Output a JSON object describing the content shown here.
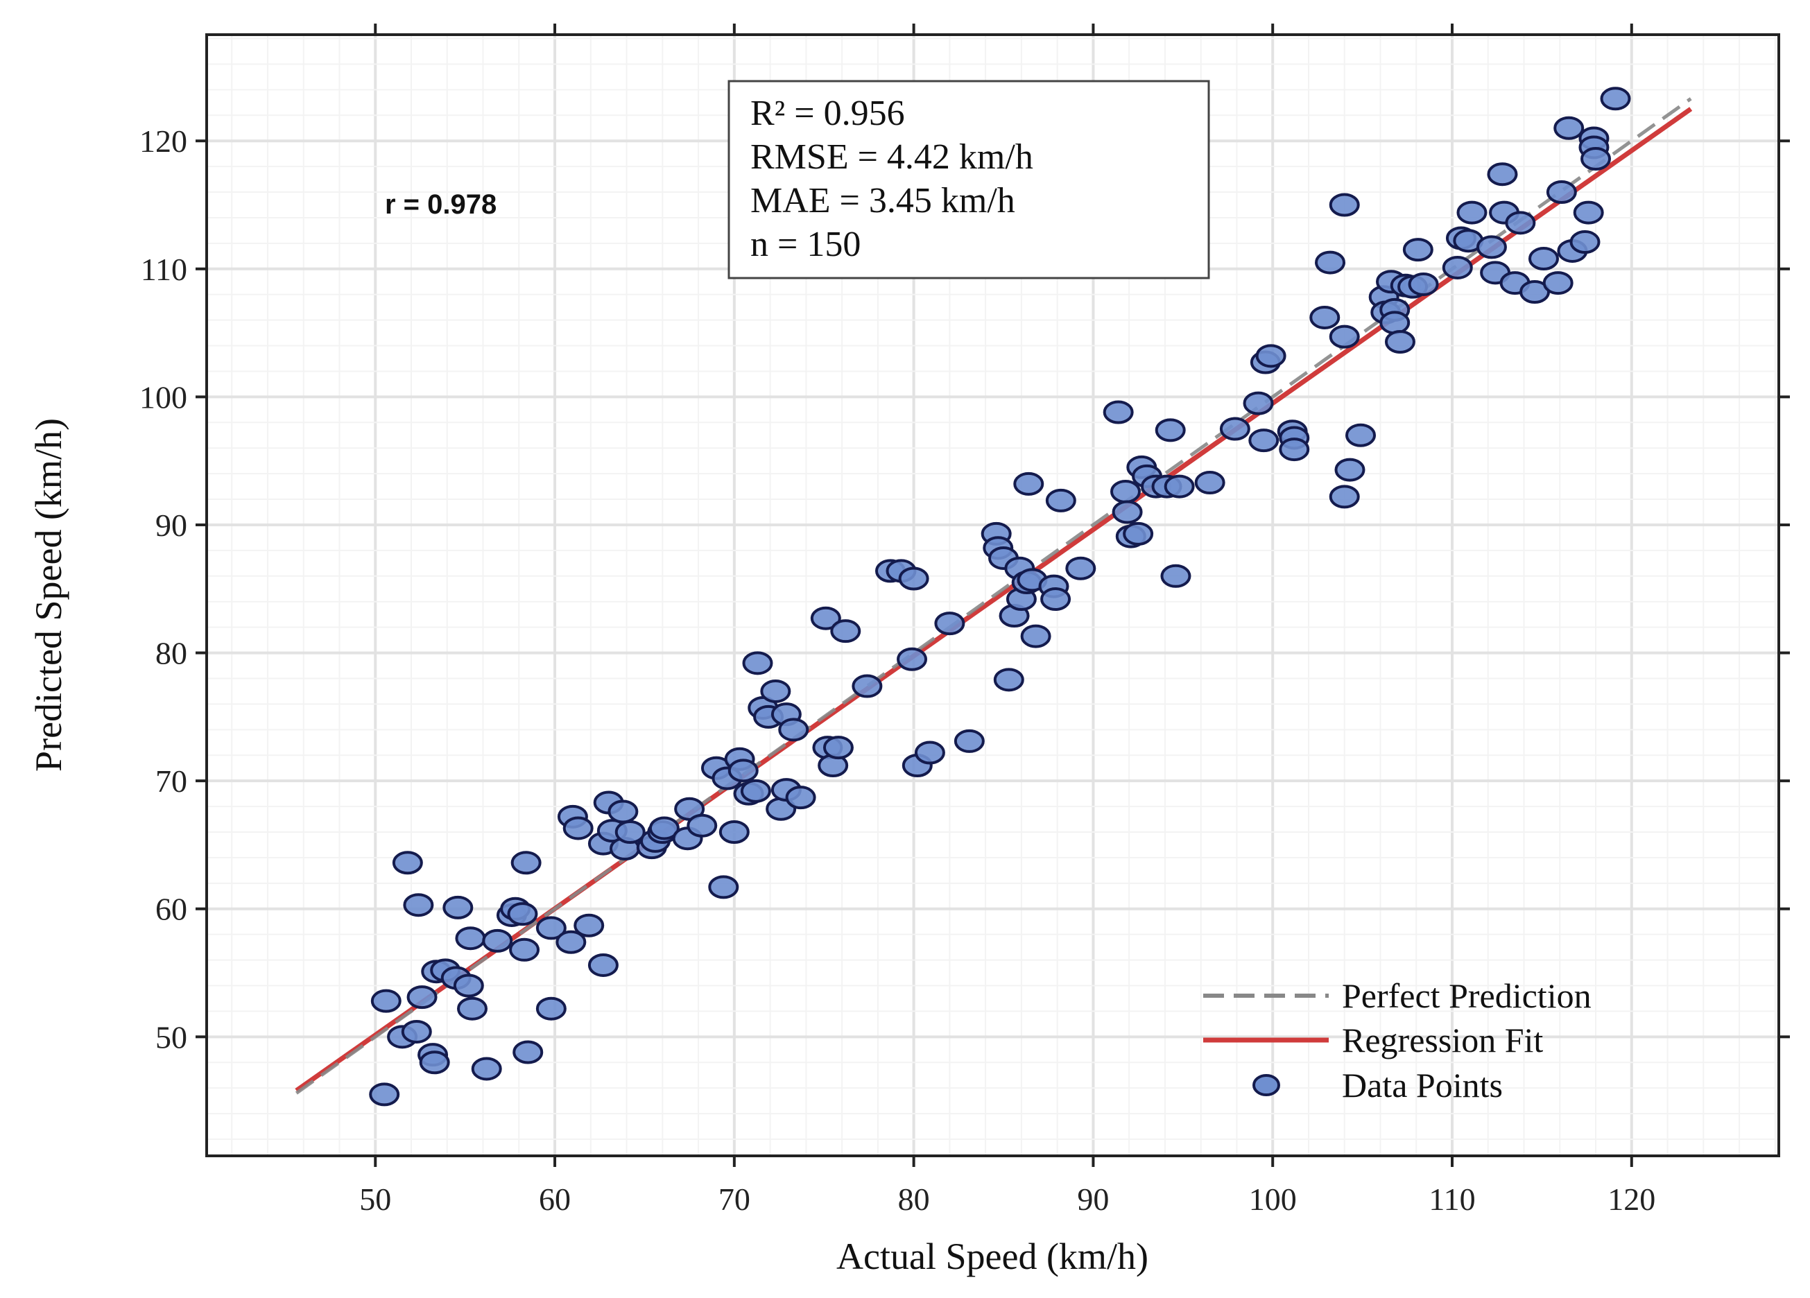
{
  "chart_data": {
    "type": "scatter",
    "xlabel": "Actual Speed (km/h)",
    "ylabel": "Predicted Speed (km/h)",
    "xlim": [
      40.6,
      128.2
    ],
    "ylim": [
      40.7,
      128.3
    ],
    "xticks": [
      50,
      60,
      70,
      80,
      90,
      100,
      110,
      120
    ],
    "yticks": [
      50,
      60,
      70,
      80,
      90,
      100,
      110,
      120
    ],
    "grid": true,
    "legend_position": "bottom-right",
    "annotation_r": "r = 0.978",
    "stats": [
      "R² = 0.956",
      "RMSE = 4.42 km/h",
      "MAE = 3.45 km/h",
      "n = 150"
    ],
    "colors": {
      "points_fill": "#6f8fd0",
      "points_edge": "#141b4d",
      "regression": "#d03b3b",
      "perfect": "#888888"
    },
    "series": [
      {
        "name": "Perfect Prediction",
        "kind": "line",
        "style": "dashed",
        "x": [
          45.6,
          123.3
        ],
        "y": [
          45.6,
          123.3
        ]
      },
      {
        "name": "Regression Fit",
        "kind": "line",
        "style": "solid",
        "x": [
          45.6,
          123.3
        ],
        "y": [
          45.8,
          122.5
        ]
      },
      {
        "name": "Data Points",
        "kind": "scatter",
        "points": [
          [
            50.5,
            45.5
          ],
          [
            50.6,
            52.8
          ],
          [
            51.5,
            50
          ],
          [
            51.8,
            63.6
          ],
          [
            52.3,
            50.4
          ],
          [
            52.4,
            60.3
          ],
          [
            52.6,
            53.1
          ],
          [
            53.2,
            48.6
          ],
          [
            53.3,
            48
          ],
          [
            53.4,
            55.1
          ],
          [
            53.9,
            55.2
          ],
          [
            54.5,
            54.6
          ],
          [
            54.6,
            60.1
          ],
          [
            55.2,
            54
          ],
          [
            55.3,
            57.7
          ],
          [
            55.4,
            52.2
          ],
          [
            56.2,
            47.5
          ],
          [
            56.8,
            57.5
          ],
          [
            57.6,
            59.5
          ],
          [
            57.8,
            60
          ],
          [
            58.2,
            59.6
          ],
          [
            58.3,
            56.8
          ],
          [
            58.4,
            63.6
          ],
          [
            58.5,
            48.8
          ],
          [
            59.8,
            58.5
          ],
          [
            59.8,
            52.2
          ],
          [
            60.9,
            57.4
          ],
          [
            61,
            67.2
          ],
          [
            61.3,
            66.3
          ],
          [
            61.9,
            58.7
          ],
          [
            62.7,
            55.6
          ],
          [
            62.7,
            65.1
          ],
          [
            63,
            68.3
          ],
          [
            63.2,
            66.1
          ],
          [
            63.8,
            67.6
          ],
          [
            63.9,
            64.7
          ],
          [
            64.2,
            66
          ],
          [
            65.4,
            64.8
          ],
          [
            65.6,
            65.3
          ],
          [
            66,
            66
          ],
          [
            66.1,
            66.3
          ],
          [
            67.4,
            65.5
          ],
          [
            67.5,
            67.8
          ],
          [
            68.2,
            66.5
          ],
          [
            69,
            71
          ],
          [
            69.4,
            61.7
          ],
          [
            69.6,
            70.2
          ],
          [
            70,
            66
          ],
          [
            70.3,
            71.7
          ],
          [
            70.5,
            70.8
          ],
          [
            70.8,
            69
          ],
          [
            71.2,
            69.2
          ],
          [
            71.3,
            79.2
          ],
          [
            71.6,
            75.7
          ],
          [
            71.9,
            75
          ],
          [
            72.3,
            77
          ],
          [
            72.6,
            67.8
          ],
          [
            72.9,
            75.2
          ],
          [
            72.9,
            69.3
          ],
          [
            73.3,
            74
          ],
          [
            73.7,
            68.7
          ],
          [
            75.1,
            82.7
          ],
          [
            75.2,
            72.6
          ],
          [
            75.5,
            71.2
          ],
          [
            75.8,
            72.6
          ],
          [
            76.2,
            81.7
          ],
          [
            77.4,
            77.4
          ],
          [
            78.7,
            86.4
          ],
          [
            79.3,
            86.4
          ],
          [
            79.9,
            79.5
          ],
          [
            80,
            85.8
          ],
          [
            80.2,
            71.2
          ],
          [
            80.9,
            72.2
          ],
          [
            82,
            82.3
          ],
          [
            83.1,
            73.1
          ],
          [
            84.6,
            89.3
          ],
          [
            84.7,
            88.2
          ],
          [
            85,
            87.4
          ],
          [
            85.3,
            77.9
          ],
          [
            85.6,
            82.9
          ],
          [
            85.9,
            86.6
          ],
          [
            86,
            84.2
          ],
          [
            86.3,
            85.5
          ],
          [
            86.4,
            93.2
          ],
          [
            86.6,
            85.7
          ],
          [
            86.8,
            81.3
          ],
          [
            87.8,
            85.2
          ],
          [
            87.9,
            84.2
          ],
          [
            88.2,
            91.9
          ],
          [
            89.3,
            86.6
          ],
          [
            91.4,
            98.8
          ],
          [
            91.8,
            92.6
          ],
          [
            91.9,
            91
          ],
          [
            92.1,
            89.1
          ],
          [
            92.5,
            89.3
          ],
          [
            92.7,
            94.5
          ],
          [
            93,
            93.8
          ],
          [
            93.5,
            93
          ],
          [
            94.1,
            93
          ],
          [
            94.3,
            97.4
          ],
          [
            94.6,
            86
          ],
          [
            94.8,
            93
          ],
          [
            96.5,
            93.3
          ],
          [
            97.9,
            97.5
          ],
          [
            99.2,
            99.5
          ],
          [
            99.5,
            96.6
          ],
          [
            99.6,
            102.7
          ],
          [
            99.9,
            103.2
          ],
          [
            101.1,
            97.3
          ],
          [
            101.2,
            96.8
          ],
          [
            101.2,
            95.9
          ],
          [
            102.9,
            106.2
          ],
          [
            103.2,
            110.5
          ],
          [
            104,
            115
          ],
          [
            104,
            104.7
          ],
          [
            104,
            92.2
          ],
          [
            104.3,
            94.3
          ],
          [
            104.9,
            97
          ],
          [
            106.2,
            107.8
          ],
          [
            106.3,
            106.6
          ],
          [
            106.6,
            109
          ],
          [
            106.8,
            106.8
          ],
          [
            106.8,
            105.8
          ],
          [
            107.1,
            104.3
          ],
          [
            107.4,
            108.7
          ],
          [
            107.8,
            108.6
          ],
          [
            108.1,
            111.5
          ],
          [
            108.4,
            108.8
          ],
          [
            110.3,
            110.1
          ],
          [
            110.5,
            112.4
          ],
          [
            110.9,
            112.2
          ],
          [
            111.1,
            114.4
          ],
          [
            112.2,
            111.7
          ],
          [
            112.4,
            109.7
          ],
          [
            112.8,
            117.4
          ],
          [
            112.9,
            114.4
          ],
          [
            113.5,
            108.9
          ],
          [
            113.8,
            113.6
          ],
          [
            114.6,
            108.2
          ],
          [
            115.1,
            110.8
          ],
          [
            115.9,
            108.9
          ],
          [
            116.1,
            116
          ],
          [
            116.5,
            121
          ],
          [
            116.7,
            111.4
          ],
          [
            117.4,
            112.1
          ],
          [
            117.6,
            114.4
          ],
          [
            117.9,
            120.2
          ],
          [
            117.9,
            119.5
          ],
          [
            118,
            118.6
          ],
          [
            119.1,
            123.3
          ]
        ]
      }
    ]
  }
}
